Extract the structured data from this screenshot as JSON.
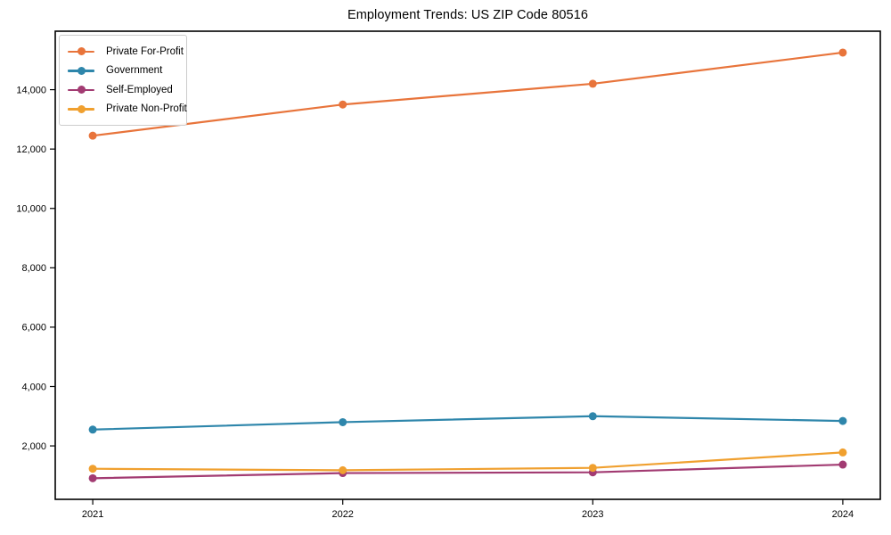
{
  "chart_data": {
    "type": "line",
    "title": "Employment Trends: US ZIP Code 80516",
    "xlabel": "",
    "ylabel": "",
    "categories": [
      "2021",
      "2022",
      "2023",
      "2024"
    ],
    "series": [
      {
        "name": "Private For-Profit",
        "color": "#E8743B",
        "values": [
          12450,
          13500,
          14200,
          15250
        ]
      },
      {
        "name": "Government",
        "color": "#2E86AB",
        "values": [
          2550,
          2800,
          3000,
          2840
        ]
      },
      {
        "name": "Self-Employed",
        "color": "#A23B72",
        "values": [
          910,
          1085,
          1110,
          1370
        ]
      },
      {
        "name": "Private Non-Profit",
        "color": "#F0A02F",
        "values": [
          1230,
          1180,
          1260,
          1780
        ]
      }
    ],
    "y_ticks": [
      2000,
      4000,
      6000,
      8000,
      10000,
      12000,
      14000
    ],
    "y_tick_labels": [
      "2,000",
      "4,000",
      "6,000",
      "8,000",
      "10,000",
      "12,000",
      "14,000"
    ],
    "ylim": [
      200,
      15970
    ],
    "xlim": [
      -0.15,
      3.15
    ],
    "grid": false,
    "legend_position": "upper-left",
    "marker": "circle",
    "line_width": 2.2,
    "marker_radius": 4.5,
    "spine_color": "#000000",
    "tick_color": "#000000",
    "background_color": "#ffffff"
  }
}
